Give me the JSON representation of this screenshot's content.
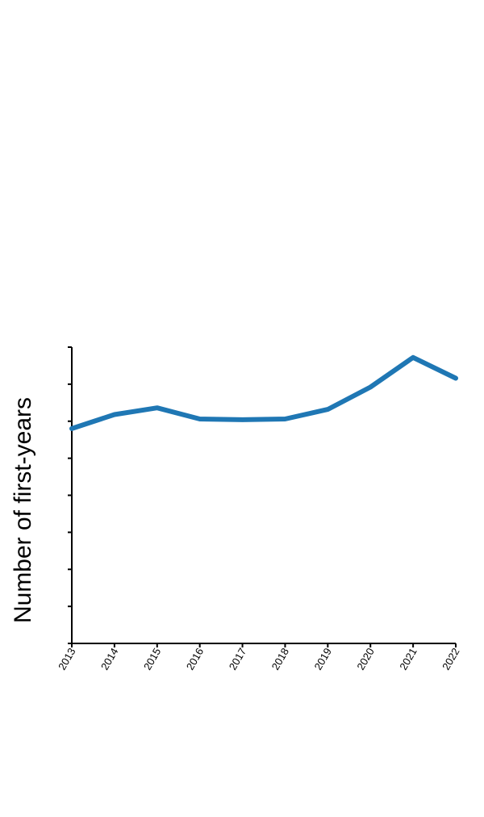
{
  "chart_data": {
    "type": "line",
    "ylabel": "Number of first-years",
    "xlabel": "",
    "title": "",
    "x": [
      "2013",
      "2014",
      "2015",
      "2016",
      "2017",
      "2018",
      "2019",
      "2020",
      "2021",
      "2022"
    ],
    "series": [
      {
        "values": [
          290,
          309,
          318,
          303,
          302,
          303,
          316,
          346,
          386,
          358
        ],
        "color": "#1f77b4"
      }
    ],
    "ylim": [
      0,
      400
    ],
    "y_ticks": [
      0,
      50,
      100,
      150,
      200,
      250,
      300,
      350,
      400
    ],
    "y_tick_labels_visible": false,
    "grid": false,
    "legend": "none"
  }
}
